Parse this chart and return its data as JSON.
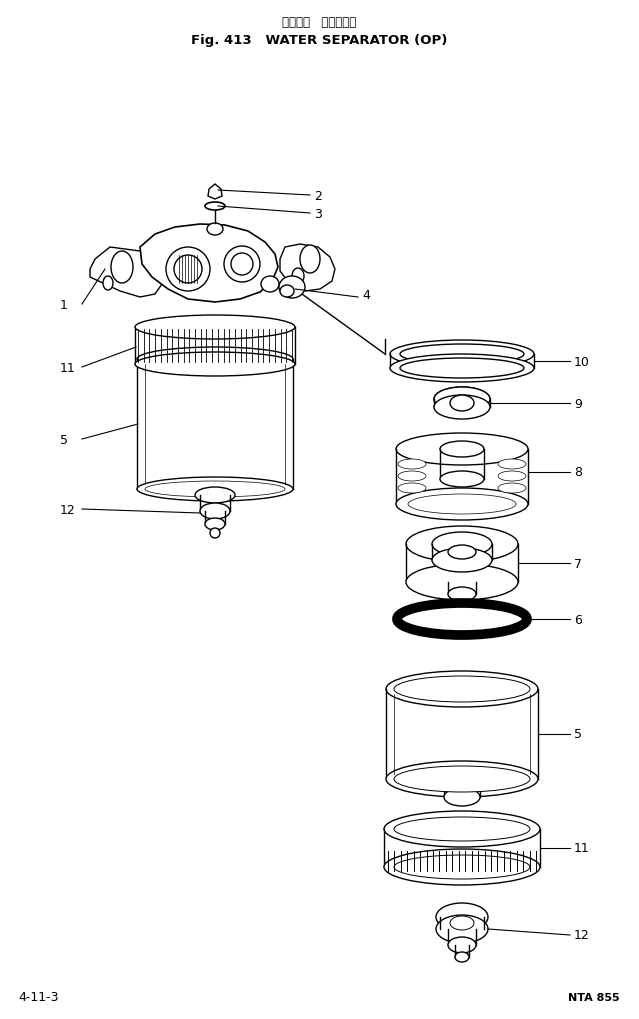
{
  "title_japanese": "ウォータ   セパレータ",
  "title_english": "Fig. 413   WATER SEPARATOR (OP)",
  "footer_left": "4-11-3",
  "footer_right": "NTA 855",
  "bg_color": "#ffffff",
  "line_color": "#000000",
  "figsize": [
    6.39,
    10.2
  ],
  "dpi": 100
}
